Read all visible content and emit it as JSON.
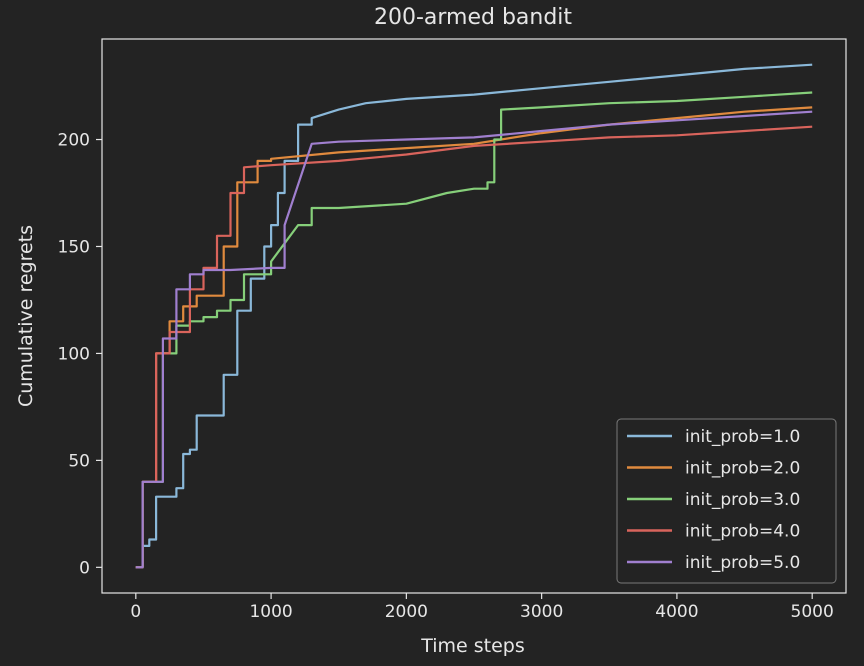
{
  "chart_data": {
    "type": "line",
    "title": "200-armed bandit",
    "xlabel": "Time steps",
    "ylabel": "Cumulative regrets",
    "xlim": [
      -250,
      5250
    ],
    "ylim": [
      -12,
      247
    ],
    "xticks": [
      0,
      1000,
      2000,
      3000,
      4000,
      5000
    ],
    "yticks": [
      0,
      50,
      100,
      150,
      200
    ],
    "grid": false,
    "legend_position": "lower-right",
    "series": [
      {
        "name": "init_prob=1.0",
        "color": "#8ab8d9",
        "points": [
          [
            0,
            0
          ],
          [
            50,
            10
          ],
          [
            100,
            13
          ],
          [
            150,
            33
          ],
          [
            300,
            37
          ],
          [
            350,
            53
          ],
          [
            400,
            55
          ],
          [
            450,
            71
          ],
          [
            600,
            71
          ],
          [
            650,
            90
          ],
          [
            750,
            120
          ],
          [
            850,
            135
          ],
          [
            950,
            150
          ],
          [
            1000,
            160
          ],
          [
            1050,
            175
          ],
          [
            1100,
            190
          ],
          [
            1200,
            207
          ],
          [
            1300,
            210
          ],
          [
            1500,
            214
          ],
          [
            1700,
            217
          ],
          [
            2000,
            219
          ],
          [
            2500,
            221
          ],
          [
            3000,
            224
          ],
          [
            3500,
            227
          ],
          [
            4000,
            230
          ],
          [
            4500,
            233
          ],
          [
            5000,
            235
          ]
        ]
      },
      {
        "name": "init_prob=2.0",
        "color": "#e08a3e",
        "points": [
          [
            0,
            0
          ],
          [
            50,
            40
          ],
          [
            150,
            100
          ],
          [
            250,
            115
          ],
          [
            350,
            122
          ],
          [
            450,
            127
          ],
          [
            550,
            127
          ],
          [
            650,
            150
          ],
          [
            750,
            180
          ],
          [
            900,
            190
          ],
          [
            1000,
            191
          ],
          [
            1500,
            194
          ],
          [
            2000,
            196
          ],
          [
            2500,
            198
          ],
          [
            3000,
            203
          ],
          [
            3500,
            207
          ],
          [
            4000,
            210
          ],
          [
            4500,
            213
          ],
          [
            5000,
            215
          ]
        ]
      },
      {
        "name": "init_prob=3.0",
        "color": "#86cf7a",
        "points": [
          [
            0,
            0
          ],
          [
            50,
            40
          ],
          [
            200,
            100
          ],
          [
            300,
            113
          ],
          [
            400,
            115
          ],
          [
            500,
            117
          ],
          [
            600,
            120
          ],
          [
            700,
            125
          ],
          [
            800,
            137
          ],
          [
            900,
            137
          ],
          [
            1000,
            143
          ],
          [
            1200,
            160
          ],
          [
            1300,
            168
          ],
          [
            1500,
            168
          ],
          [
            2000,
            170
          ],
          [
            2300,
            175
          ],
          [
            2500,
            177
          ],
          [
            2600,
            180
          ],
          [
            2650,
            200
          ],
          [
            2700,
            214
          ],
          [
            3000,
            215
          ],
          [
            3500,
            217
          ],
          [
            4000,
            218
          ],
          [
            4500,
            220
          ],
          [
            5000,
            222
          ]
        ]
      },
      {
        "name": "init_prob=4.0",
        "color": "#d9645c",
        "points": [
          [
            0,
            0
          ],
          [
            50,
            40
          ],
          [
            150,
            100
          ],
          [
            250,
            110
          ],
          [
            400,
            130
          ],
          [
            500,
            140
          ],
          [
            600,
            155
          ],
          [
            700,
            175
          ],
          [
            800,
            187
          ],
          [
            1000,
            188
          ],
          [
            1500,
            190
          ],
          [
            2000,
            193
          ],
          [
            2500,
            197
          ],
          [
            3000,
            199
          ],
          [
            3500,
            201
          ],
          [
            4000,
            202
          ],
          [
            4500,
            204
          ],
          [
            5000,
            206
          ]
        ]
      },
      {
        "name": "init_prob=5.0",
        "color": "#a07fcf",
        "points": [
          [
            0,
            0
          ],
          [
            50,
            40
          ],
          [
            200,
            107
          ],
          [
            300,
            130
          ],
          [
            400,
            137
          ],
          [
            500,
            139
          ],
          [
            700,
            139
          ],
          [
            1000,
            140
          ],
          [
            1100,
            160
          ],
          [
            1300,
            198
          ],
          [
            1500,
            199
          ],
          [
            2000,
            200
          ],
          [
            2500,
            201
          ],
          [
            3000,
            204
          ],
          [
            3500,
            207
          ],
          [
            4000,
            209
          ],
          [
            4500,
            211
          ],
          [
            5000,
            213
          ]
        ]
      }
    ]
  }
}
